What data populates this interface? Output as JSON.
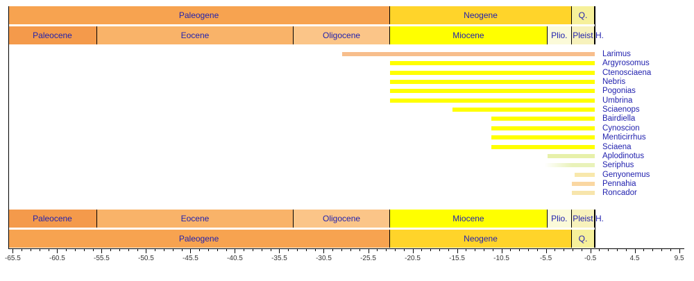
{
  "style": {
    "background": "#FFFFFF",
    "band_label_color": "#2121AE",
    "taxon_label_color": "#2121AE",
    "axis_line_color": "#000000",
    "tick_label_color": "#333333"
  },
  "chart_data": {
    "type": "bar",
    "subtype": "stratigraphic-range-chart",
    "orientation": "horizontal",
    "title": "",
    "xlabel": "",
    "ylabel": "",
    "unit": "Ma",
    "xlim": [
      -66,
      10
    ],
    "grid": false,
    "legend_position": "none",
    "x_major_ticks": [
      -65.5,
      -60.5,
      -55.5,
      -50.5,
      -45.5,
      -40.5,
      -35.5,
      -30.5,
      -25.5,
      -20.5,
      -15.5,
      -10.5,
      -5.5,
      -0.5,
      4.5,
      9.5
    ],
    "x_minor_tick_step": 1,
    "x_minor_tick_start": -65.5,
    "x_minor_tick_end": 9.5,
    "present_day_line": 0,
    "period_bands": [
      {
        "label": "Paleogene",
        "start": -66,
        "end": -23.03,
        "color": "#F7A350"
      },
      {
        "label": "Neogene",
        "start": -23.03,
        "end": -2.58,
        "color": "#FFD42A"
      },
      {
        "label": "Q.",
        "start": -2.58,
        "end": 0,
        "color": "#F6F09A"
      }
    ],
    "epoch_bands": [
      {
        "label": "Paleocene",
        "start": -66,
        "end": -56,
        "color": "#F49A4B"
      },
      {
        "label": "Eocene",
        "start": -56,
        "end": -33.9,
        "color": "#F9B369"
      },
      {
        "label": "Oligocene",
        "start": -33.9,
        "end": -23.03,
        "color": "#FBC588"
      },
      {
        "label": "Miocene",
        "start": -23.03,
        "end": -5.33,
        "color": "#FFFF00"
      },
      {
        "label": "Plio.",
        "start": -5.33,
        "end": -2.58,
        "color": "#FBFAD9"
      },
      {
        "label": "Pleist",
        "start": -2.58,
        "end": -0.01,
        "color": "#F7F2BC"
      },
      {
        "label": "H.",
        "start": -0.01,
        "end": 0,
        "color": "#FFFFFF",
        "label_outside": true
      }
    ],
    "series": [
      {
        "name": "Larimus",
        "start": -28.4,
        "end": 0,
        "color": "#F7BE8C"
      },
      {
        "name": "Argyrosomus",
        "start": -23.03,
        "end": 0,
        "color": "#FFFF00"
      },
      {
        "name": "Ctenosciaena",
        "start": -23.03,
        "end": 0,
        "color": "#FFFF00"
      },
      {
        "name": "Nebris",
        "start": -23.03,
        "end": 0,
        "color": "#FFFF00"
      },
      {
        "name": "Pogonias",
        "start": -23.03,
        "end": 0,
        "color": "#FFFF00"
      },
      {
        "name": "Umbrina",
        "start": -23.03,
        "end": 0,
        "color": "#FFFF00"
      },
      {
        "name": "Sciaenops",
        "start": -16.0,
        "end": 0,
        "color": "#FFFF00"
      },
      {
        "name": "Bairdiella",
        "start": -11.6,
        "end": 0,
        "color": "#FFFF00"
      },
      {
        "name": "Cynoscion",
        "start": -11.6,
        "end": 0,
        "color": "#FFFF00"
      },
      {
        "name": "Menticirrhus",
        "start": -11.6,
        "end": 0,
        "color": "#FFFF00"
      },
      {
        "name": "Sciaena",
        "start": -11.6,
        "end": 0,
        "color": "#FFFF00"
      },
      {
        "name": "Aplodinotus",
        "start": -5.33,
        "end": 0,
        "color": "#E7F0AA"
      },
      {
        "name": "Seriphus",
        "start": -5.6,
        "end": 0,
        "color": "#E9F2BA",
        "fade_left": true
      },
      {
        "name": "Genyonemus",
        "start": -2.3,
        "end": 0,
        "color": "#F8E8AC"
      },
      {
        "name": "Pennahia",
        "start": -2.58,
        "end": 0,
        "color": "#FAD7A2"
      },
      {
        "name": "Roncador",
        "start": -2.58,
        "end": 0,
        "color": "#F7E5AC"
      }
    ]
  }
}
